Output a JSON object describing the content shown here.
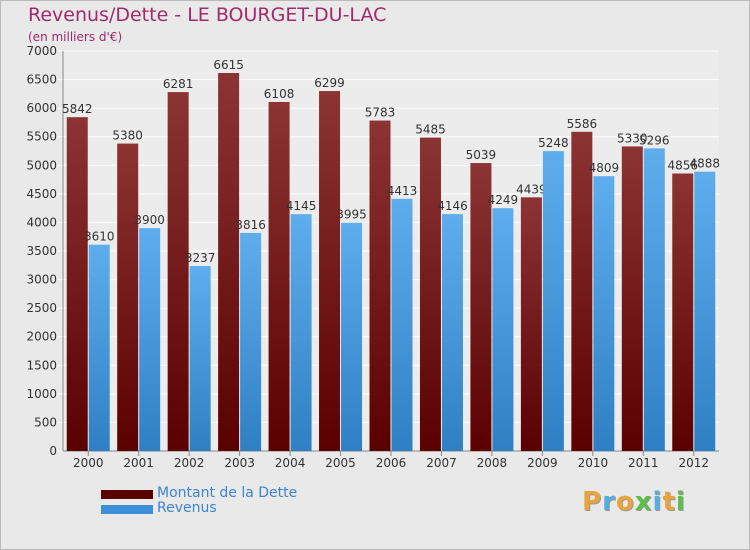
{
  "title": "Revenus/Dette - LE BOURGET-DU-LAC",
  "subtitle": "(en milliers d'€)",
  "colors": {
    "dette_top": "#8c3434",
    "dette_bottom": "#5a0000",
    "revenus_top": "#5eaeee",
    "revenus_bottom": "#2f7fc4",
    "background": "#e9e9e9",
    "title": "#a02a6a",
    "legend_text": "#3c84d6"
  },
  "logo": {
    "letters": [
      "P",
      "r",
      "o",
      "x",
      "i",
      "t",
      "i"
    ],
    "colors": [
      "#e8a33a",
      "#55aee0",
      "#e8a33a",
      "#5cbf4a",
      "#55aee0",
      "#e8a33a",
      "#5cbf4a"
    ]
  },
  "legend": {
    "items": [
      {
        "label": "Montant de la Dette",
        "color": "#5a0000"
      },
      {
        "label": "Revenus",
        "color": "#3c8fd9"
      }
    ]
  },
  "chart_data": {
    "type": "bar",
    "title": "Revenus/Dette - LE BOURGET-DU-LAC",
    "subtitle": "(en milliers d'€)",
    "categories": [
      "2000",
      "2001",
      "2002",
      "2003",
      "2004",
      "2005",
      "2006",
      "2007",
      "2008",
      "2009",
      "2010",
      "2011",
      "2012"
    ],
    "series": [
      {
        "name": "Montant de la Dette",
        "values": [
          5842,
          5380,
          6281,
          6615,
          6108,
          6299,
          5783,
          5485,
          5039,
          4439,
          5586,
          5330,
          4856
        ]
      },
      {
        "name": "Revenus",
        "values": [
          3610,
          3900,
          3237,
          3816,
          4145,
          3995,
          4413,
          4146,
          4249,
          5248,
          4809,
          5296,
          4888
        ]
      }
    ],
    "ylim": [
      0,
      7000
    ],
    "yticks": [
      0,
      500,
      1000,
      1500,
      2000,
      2500,
      3000,
      3500,
      4000,
      4500,
      5000,
      5500,
      6000,
      6500,
      7000
    ],
    "grid": true,
    "legend_position": "bottom-left"
  }
}
